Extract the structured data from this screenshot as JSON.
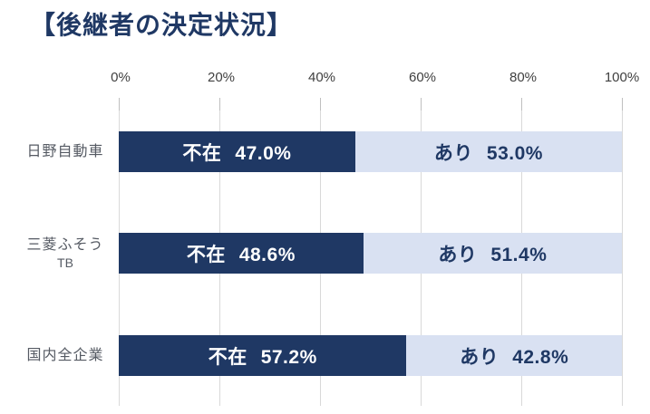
{
  "title": "【後継者の決定状況】",
  "colors": {
    "dark": "#1F3864",
    "light": "#D9E1F2",
    "grid": "#D9D9D9",
    "tick": "#BFBFBF",
    "title-color": "#1F3864",
    "axis-text": "#404040",
    "cat-text": "#555a63",
    "value-on-dark": "#FFFFFF",
    "value-on-light": "#1F3864"
  },
  "axis": {
    "ticks": [
      "0%",
      "20%",
      "40%",
      "60%",
      "80%",
      "100%"
    ]
  },
  "rows": [
    {
      "category": "日野自動車",
      "category_line2": "",
      "absent": {
        "name": "不在",
        "value": "47.0%",
        "pct": 47.0
      },
      "present": {
        "name": "あり",
        "value": "53.0%",
        "pct": 53.0
      }
    },
    {
      "category": "三菱ふそう",
      "category_line2": "TB",
      "absent": {
        "name": "不在",
        "value": "48.6%",
        "pct": 48.6
      },
      "present": {
        "name": "あり",
        "value": "51.4%",
        "pct": 51.4
      }
    },
    {
      "category": "国内全企業",
      "category_line2": "",
      "absent": {
        "name": "不在",
        "value": "57.2%",
        "pct": 57.2
      },
      "present": {
        "name": "あり",
        "value": "42.8%",
        "pct": 42.8
      }
    }
  ],
  "chart_data": {
    "type": "bar",
    "orientation": "horizontal",
    "stacked": true,
    "title": "【後継者の決定状況】",
    "categories": [
      "日野自動車",
      "三菱ふそうTB",
      "国内全企業"
    ],
    "series": [
      {
        "name": "不在",
        "values": [
          47.0,
          48.6,
          57.2
        ],
        "color": "#1F3864"
      },
      {
        "name": "あり",
        "values": [
          53.0,
          51.4,
          42.8
        ],
        "color": "#D9E1F2"
      }
    ],
    "xlim": [
      0,
      100
    ],
    "x_tick_labels": [
      "0%",
      "20%",
      "40%",
      "60%",
      "80%",
      "100%"
    ],
    "x_tick_values": [
      0,
      20,
      40,
      60,
      80,
      100
    ],
    "grid": true,
    "axis_position": "top",
    "legend": "none",
    "value_label_format": "{series}  {value}%"
  }
}
